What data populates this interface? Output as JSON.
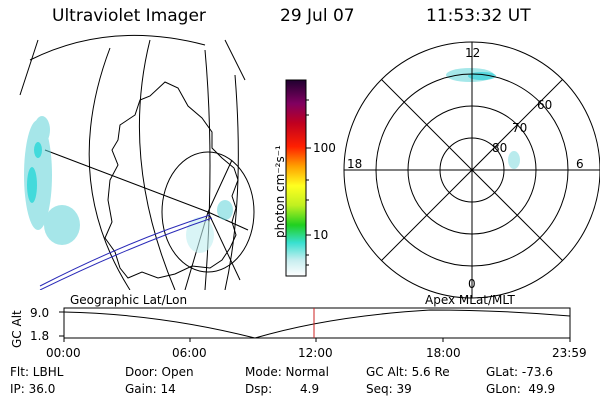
{
  "header": {
    "title": "Ultraviolet Imager",
    "date": "29 Jul 07",
    "time": "11:53:32 UT"
  },
  "colorbar": {
    "unit_label": "photon cm⁻²s⁻¹",
    "tick_100": "100",
    "tick_10": "10"
  },
  "polar_plot": {
    "label_12": "12",
    "label_18": "18",
    "label_6": "6",
    "label_0": "0",
    "label_60": "60",
    "label_70": "70",
    "label_80": "80"
  },
  "altitude_strip": {
    "left_label": "Geographic Lat/Lon",
    "right_label": "Apex MLat/MLT",
    "axis_title": "GC Alt",
    "y_max": "9.0",
    "y_min": "1.8",
    "x_ticks": [
      "00:00",
      "06:00",
      "12:00",
      "18:00",
      "23:59"
    ]
  },
  "info": {
    "flt": "Flt: LBHL",
    "ip": "IP: 36.0",
    "door": "Door: Open",
    "gain": "Gain: 14",
    "mode": "Mode: Normal",
    "dsp_label": "Dsp:",
    "dsp_value": "4.9",
    "gc_alt": "GC Alt: 5.6 Re",
    "seq": "Seq: 39",
    "glat": "GLat: -73.6",
    "glon": "GLon:  49.9"
  },
  "colors": {
    "emission": "#5fd3d8",
    "trajectory": "#2a2ab8",
    "time_marker": "#cc2020"
  }
}
